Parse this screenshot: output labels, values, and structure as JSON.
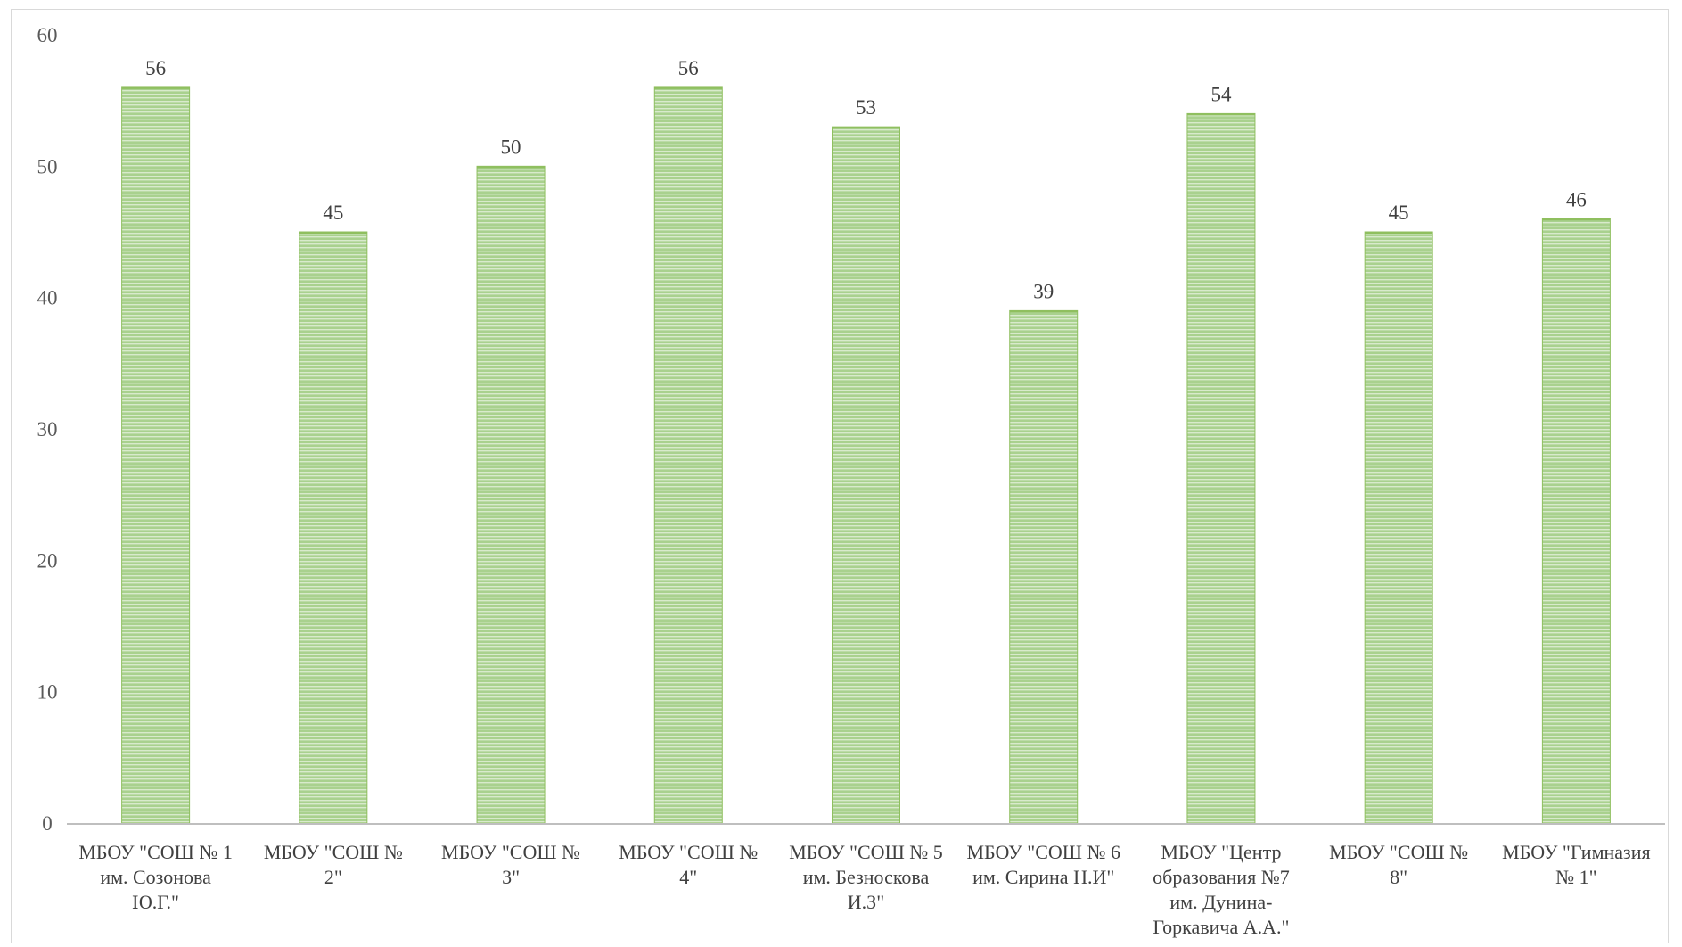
{
  "chart_data": {
    "type": "bar",
    "title": "",
    "xlabel": "",
    "ylabel": "",
    "ylim": [
      0,
      60
    ],
    "yticks": [
      0,
      10,
      20,
      30,
      40,
      50,
      60
    ],
    "grid": false,
    "legend": "none",
    "categories": [
      "МБОУ \"СОШ № 1 им. Созонова Ю.Г.\"",
      "МБОУ \"СОШ № 2\"",
      "МБОУ \"СОШ № 3\"",
      "МБОУ \"СОШ № 4\"",
      "МБОУ \"СОШ № 5 им. Безноскова И.З\"",
      "МБОУ \"СОШ № 6 им. Сирина Н.И\"",
      "МБОУ \"Центр образования №7 им. Дунина-Горкавича А.А.\"",
      "МБОУ \"СОШ № 8\"",
      "МБОУ \"Гимназия № 1\""
    ],
    "category_label_lines": [
      [
        "МБОУ \"СОШ № 1",
        "им. Созонова",
        "Ю.Г.\""
      ],
      [
        "МБОУ \"СОШ №",
        "2\""
      ],
      [
        "МБОУ \"СОШ №",
        "3\""
      ],
      [
        "МБОУ \"СОШ №",
        "4\""
      ],
      [
        "МБОУ \"СОШ № 5",
        "им. Безноскова",
        "И.З\""
      ],
      [
        "МБОУ \"СОШ № 6",
        "им. Сирина Н.И\""
      ],
      [
        "МБОУ \"Центр",
        "образования №7",
        "им. Дунина-",
        "Горкавича А.А.\""
      ],
      [
        "МБОУ \"СОШ №",
        "8\""
      ],
      [
        "МБОУ \"Гимназия",
        "№ 1\""
      ]
    ],
    "values": [
      56,
      45,
      50,
      56,
      53,
      39,
      54,
      45,
      46
    ],
    "data_labels": [
      "56",
      "45",
      "50",
      "56",
      "53",
      "39",
      "54",
      "45",
      "46"
    ],
    "colors": {
      "bar_fill": "#a9d18e",
      "bar_stripe": "#ffffff",
      "bar_outline": "#8fbf5f",
      "axis_line": "#bfbfbf"
    }
  }
}
